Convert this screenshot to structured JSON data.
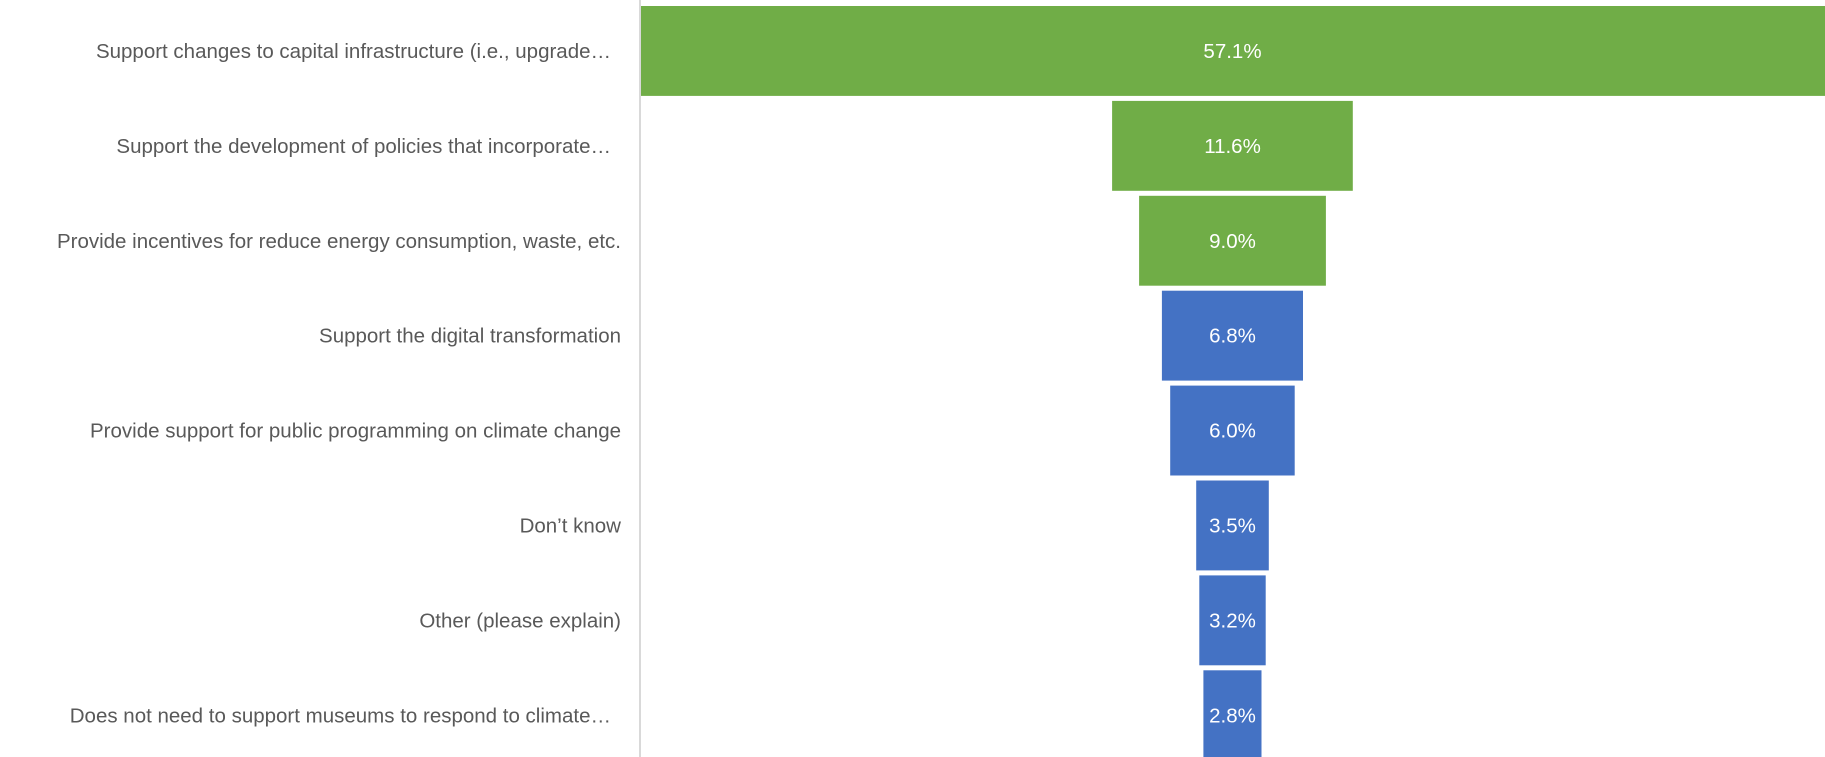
{
  "chart_data": {
    "type": "bar",
    "subtype": "funnel",
    "orientation": "horizontal",
    "categories": [
      "Support changes to capital infrastructure (i.e., upgrade…",
      "Support the development of policies that incorporate…",
      "Provide incentives for reduce energy consumption, waste, etc.",
      "Support the digital transformation",
      "Provide support for public programming on climate change",
      "Don’t know",
      "Other (please explain)",
      "Does not need to support museums to respond to climate…"
    ],
    "values": [
      57.1,
      11.6,
      9.0,
      6.8,
      6.0,
      3.5,
      3.2,
      2.8
    ],
    "value_labels": [
      "57.1%",
      "11.6%",
      "9.0%",
      "6.8%",
      "6.0%",
      "3.5%",
      "3.2%",
      "2.8%"
    ],
    "unit": "%",
    "colors": [
      "#70AD47",
      "#70AD47",
      "#70AD47",
      "#4472C4",
      "#4472C4",
      "#4472C4",
      "#4472C4",
      "#4472C4"
    ],
    "label_color": "#595959",
    "value_label_color": "#ffffff",
    "axis_color": "#d9d9d9",
    "grid": false,
    "legend": "none"
  }
}
